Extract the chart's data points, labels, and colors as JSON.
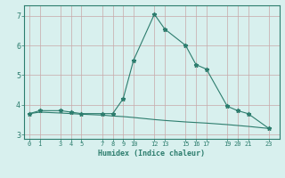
{
  "line1_x": [
    0,
    1,
    3,
    4,
    5,
    7,
    8,
    9,
    10,
    12,
    13,
    15,
    16,
    17,
    19,
    20,
    21,
    23
  ],
  "line1_y": [
    3.7,
    3.8,
    3.8,
    3.75,
    3.7,
    3.7,
    3.7,
    4.2,
    5.5,
    7.05,
    6.55,
    6.0,
    5.35,
    5.2,
    3.95,
    3.8,
    3.7,
    3.2
  ],
  "line2_x": [
    0,
    1,
    3,
    4,
    5,
    7,
    8,
    9,
    10,
    12,
    13,
    15,
    16,
    17,
    19,
    20,
    21,
    23
  ],
  "line2_y": [
    3.7,
    3.75,
    3.72,
    3.7,
    3.68,
    3.65,
    3.62,
    3.6,
    3.57,
    3.5,
    3.47,
    3.42,
    3.4,
    3.38,
    3.33,
    3.3,
    3.27,
    3.2
  ],
  "xticks": [
    0,
    1,
    3,
    4,
    5,
    7,
    8,
    9,
    10,
    12,
    13,
    15,
    16,
    17,
    19,
    20,
    21,
    23
  ],
  "yticks": [
    3,
    4,
    5,
    6,
    7
  ],
  "ylim": [
    2.85,
    7.35
  ],
  "xlim": [
    -0.5,
    24.0
  ],
  "xlabel": "Humidex (Indice chaleur)",
  "line_color": "#2d7d6e",
  "bg_color": "#d8f0ee",
  "grid_color": "#c8a8a8"
}
